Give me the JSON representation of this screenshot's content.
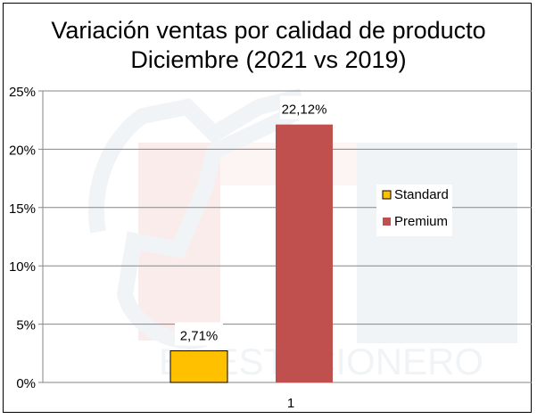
{
  "chart_data": {
    "type": "bar",
    "title": "Variación ventas por calidad de producto",
    "subtitle": "Diciembre (2021 vs 2019)",
    "categories": [
      "1"
    ],
    "series": [
      {
        "name": "Standard",
        "values": [
          2.71
        ],
        "label": "2,71%",
        "color": "#FFC000"
      },
      {
        "name": "Premium",
        "values": [
          22.12
        ],
        "label": "22,12%",
        "color": "#C0504D"
      }
    ],
    "xlabel": "",
    "ylabel": "",
    "ylim": [
      0,
      25
    ],
    "yticks": [
      0,
      5,
      10,
      15,
      20,
      25
    ],
    "ytick_labels": [
      "0%",
      "5%",
      "10%",
      "15%",
      "20%",
      "25%"
    ],
    "grid": true,
    "legend_position": "right",
    "watermark": "EL ESTACIONERO"
  }
}
